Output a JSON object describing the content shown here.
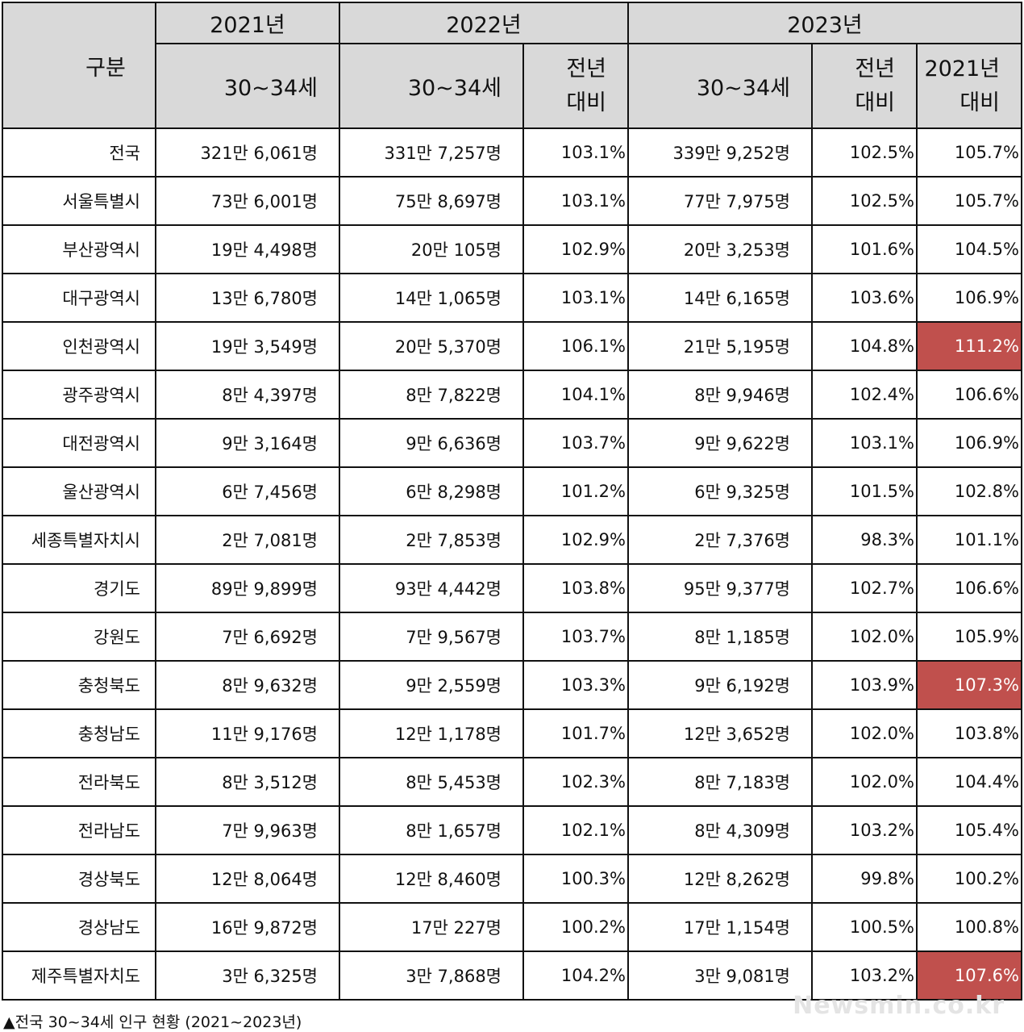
{
  "header": {
    "category": "구분",
    "year2021": "2021년",
    "year2022": "2022년",
    "year2023": "2023년",
    "age_group": "30~34세",
    "prev_year_line1": "전년",
    "prev_year_line2": "대비",
    "vs2021_line1": "2021년",
    "vs2021_line2": "대비"
  },
  "rows": [
    {
      "region": "전국",
      "y2021": "321만 6,061명",
      "y2022": "331만 7,257명",
      "y2022_vs_prev": "103.1%",
      "y2023": "339만 9,252명",
      "y2023_vs_prev": "102.5%",
      "y2023_vs_2021": "105.7%"
    },
    {
      "region": "서울특별시",
      "y2021": "73만 6,001명",
      "y2022": "75만 8,697명",
      "y2022_vs_prev": "103.1%",
      "y2023": "77만 7,975명",
      "y2023_vs_prev": "102.5%",
      "y2023_vs_2021": "105.7%"
    },
    {
      "region": "부산광역시",
      "y2021": "19만 4,498명",
      "y2022": "20만 105명",
      "y2022_vs_prev": "102.9%",
      "y2023": "20만 3,253명",
      "y2023_vs_prev": "101.6%",
      "y2023_vs_2021": "104.5%"
    },
    {
      "region": "대구광역시",
      "y2021": "13만 6,780명",
      "y2022": "14만 1,065명",
      "y2022_vs_prev": "103.1%",
      "y2023": "14만 6,165명",
      "y2023_vs_prev": "103.6%",
      "y2023_vs_2021": "106.9%"
    },
    {
      "region": "인천광역시",
      "y2021": "19만 3,549명",
      "y2022": "20만 5,370명",
      "y2022_vs_prev": "106.1%",
      "y2023": "21만 5,195명",
      "y2023_vs_prev": "104.8%",
      "y2023_vs_2021": "111.2%"
    },
    {
      "region": "광주광역시",
      "y2021": "8만 4,397명",
      "y2022": "8만 7,822명",
      "y2022_vs_prev": "104.1%",
      "y2023": "8만 9,946명",
      "y2023_vs_prev": "102.4%",
      "y2023_vs_2021": "106.6%"
    },
    {
      "region": "대전광역시",
      "y2021": "9만 3,164명",
      "y2022": "9만 6,636명",
      "y2022_vs_prev": "103.7%",
      "y2023": "9만 9,622명",
      "y2023_vs_prev": "103.1%",
      "y2023_vs_2021": "106.9%"
    },
    {
      "region": "울산광역시",
      "y2021": "6만 7,456명",
      "y2022": "6만 8,298명",
      "y2022_vs_prev": "101.2%",
      "y2023": "6만 9,325명",
      "y2023_vs_prev": "101.5%",
      "y2023_vs_2021": "102.8%"
    },
    {
      "region": "세종특별자치시",
      "y2021": "2만 7,081명",
      "y2022": "2만 7,853명",
      "y2022_vs_prev": "102.9%",
      "y2023": "2만 7,376명",
      "y2023_vs_prev": "98.3%",
      "y2023_vs_2021": "101.1%"
    },
    {
      "region": "경기도",
      "y2021": "89만 9,899명",
      "y2022": "93만 4,442명",
      "y2022_vs_prev": "103.8%",
      "y2023": "95만 9,377명",
      "y2023_vs_prev": "102.7%",
      "y2023_vs_2021": "106.6%"
    },
    {
      "region": "강원도",
      "y2021": "7만 6,692명",
      "y2022": "7만 9,567명",
      "y2022_vs_prev": "103.7%",
      "y2023": "8만 1,185명",
      "y2023_vs_prev": "102.0%",
      "y2023_vs_2021": "105.9%"
    },
    {
      "region": "충청북도",
      "y2021": "8만 9,632명",
      "y2022": "9만 2,559명",
      "y2022_vs_prev": "103.3%",
      "y2023": "9만 6,192명",
      "y2023_vs_prev": "103.9%",
      "y2023_vs_2021": "107.3%"
    },
    {
      "region": "충청남도",
      "y2021": "11만 9,176명",
      "y2022": "12만 1,178명",
      "y2022_vs_prev": "101.7%",
      "y2023": "12만 3,652명",
      "y2023_vs_prev": "102.0%",
      "y2023_vs_2021": "103.8%"
    },
    {
      "region": "전라북도",
      "y2021": "8만 3,512명",
      "y2022": "8만 5,453명",
      "y2022_vs_prev": "102.3%",
      "y2023": "8만 7,183명",
      "y2023_vs_prev": "102.0%",
      "y2023_vs_2021": "104.4%"
    },
    {
      "region": "전라남도",
      "y2021": "7만 9,963명",
      "y2022": "8만 1,657명",
      "y2022_vs_prev": "102.1%",
      "y2023": "8만 4,309명",
      "y2023_vs_prev": "103.2%",
      "y2023_vs_2021": "105.4%"
    },
    {
      "region": "경상북도",
      "y2021": "12만 8,064명",
      "y2022": "12만 8,460명",
      "y2022_vs_prev": "100.3%",
      "y2023": "12만 8,262명",
      "y2023_vs_prev": "99.8%",
      "y2023_vs_2021": "100.2%"
    },
    {
      "region": "경상남도",
      "y2021": "16만 9,872명",
      "y2022": "17만 227명",
      "y2022_vs_prev": "100.2%",
      "y2023": "17만 1,154명",
      "y2023_vs_prev": "100.5%",
      "y2023_vs_2021": "100.8%"
    },
    {
      "region": "제주특별자치도",
      "y2021": "3만 6,325명",
      "y2022": "3만 7,868명",
      "y2022_vs_prev": "104.2%",
      "y2023": "3만 9,081명",
      "y2023_vs_prev": "103.2%",
      "y2023_vs_2021": "107.6%"
    }
  ],
  "highlight_color": "#c0504d",
  "highlighted_cells": [
    "인천광역시",
    "충청북도",
    "제주특별자치도"
  ],
  "caption": "▲전국 30~34세 인구 현황 (2021~2023년)",
  "watermark": "Newsmin.co.kr"
}
